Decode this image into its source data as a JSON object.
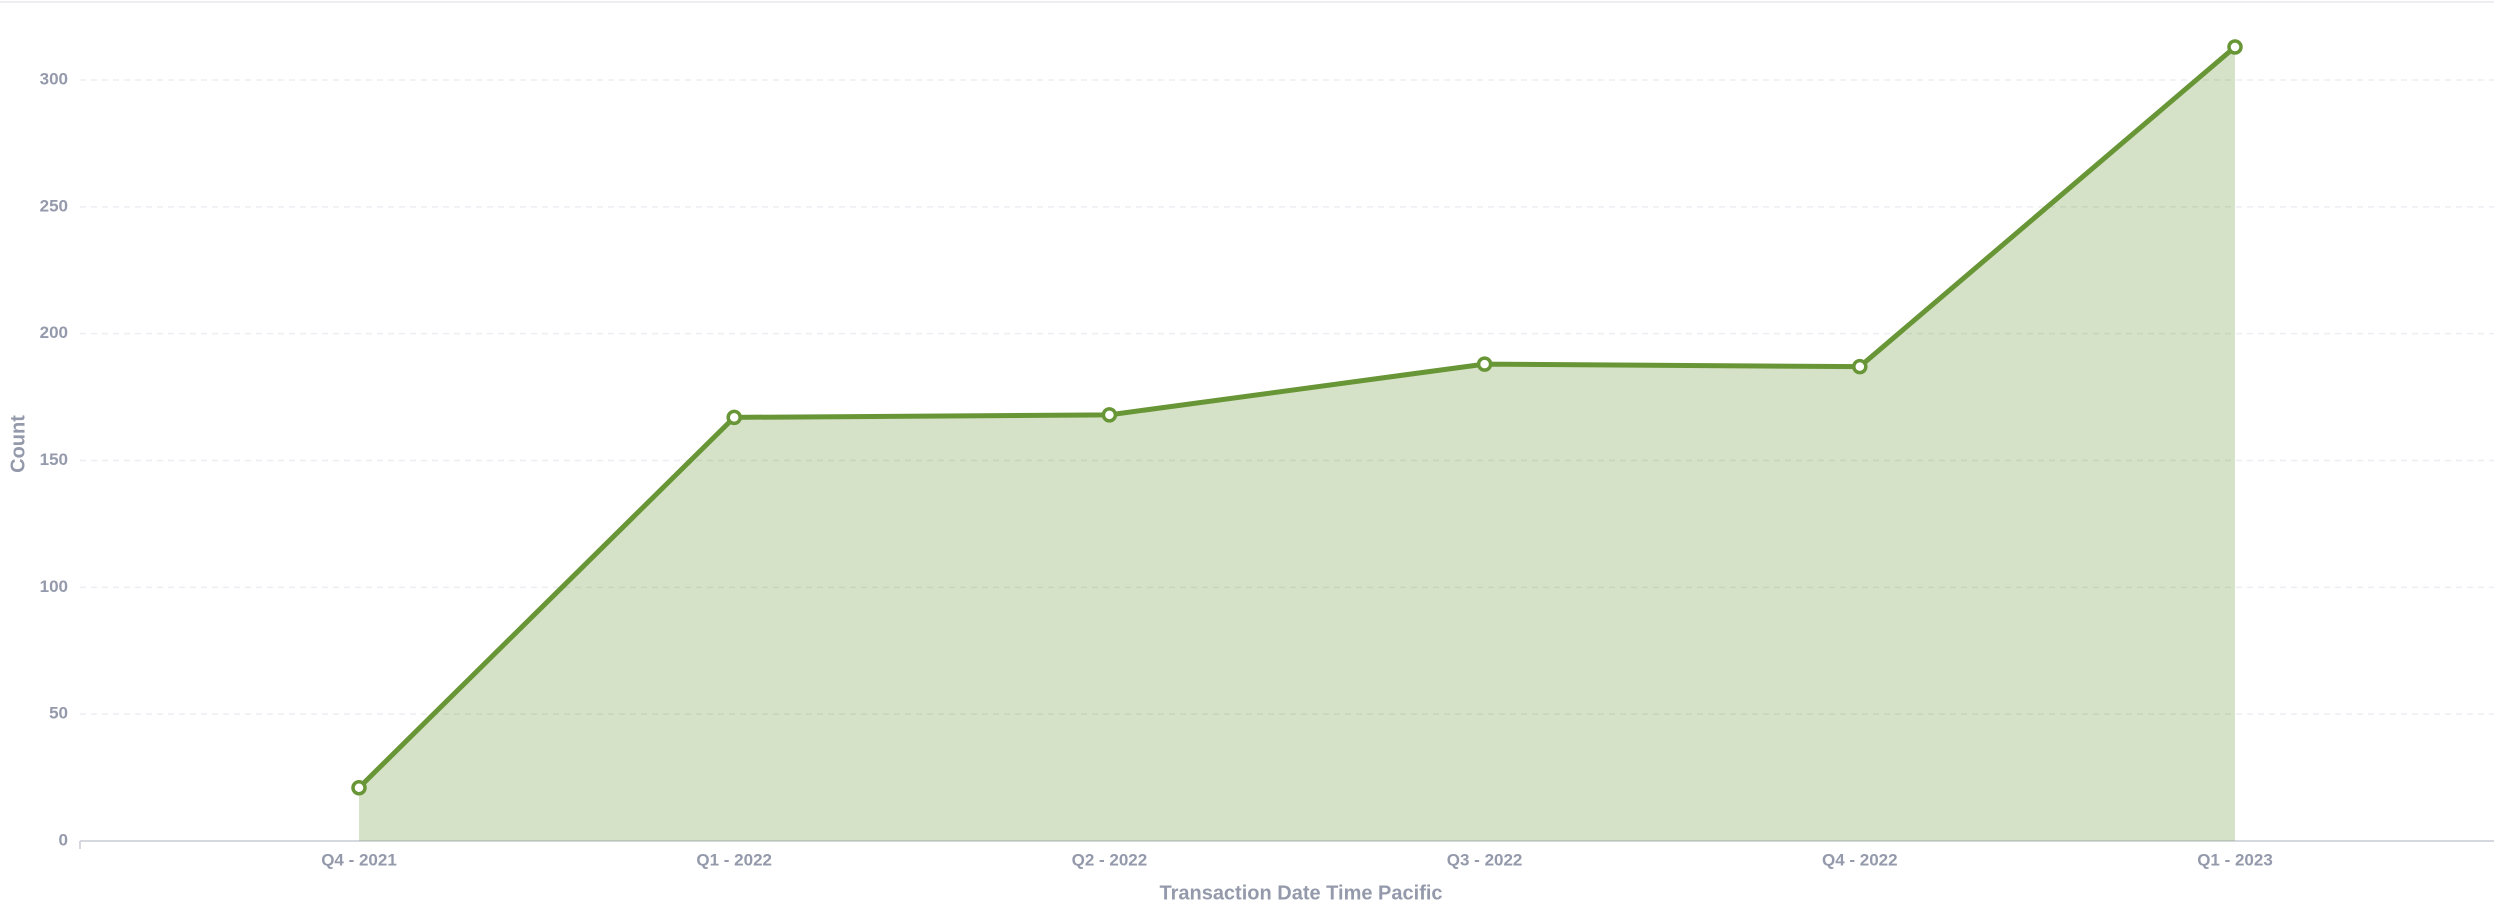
{
  "chart_data": {
    "type": "area",
    "x_label": "Transaction Date Time Pacific",
    "y_label": "Count",
    "categories": [
      "Q4 - 2021",
      "Q1 - 2022",
      "Q2 - 2022",
      "Q3 - 2022",
      "Q4 - 2022",
      "Q1 - 2023"
    ],
    "series": [
      {
        "name": "Count",
        "color": "#689636",
        "values": [
          21,
          167,
          168,
          188,
          187,
          313
        ]
      }
    ],
    "ylim": [
      0,
      300
    ],
    "yticks": [
      0,
      50,
      100,
      150,
      200,
      250,
      300
    ],
    "grid": true
  }
}
